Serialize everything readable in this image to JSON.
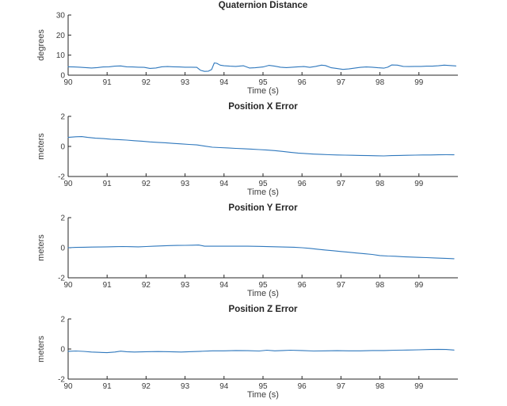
{
  "figure": {
    "background_color": "#ffffff",
    "axis_color": "#262626",
    "tick_label_color": "#3c3c3c",
    "line_color": "#2f78bd",
    "title_color": "#262626"
  },
  "chart_data": [
    {
      "type": "line",
      "title": "Quaternion Distance",
      "xlabel": "Time (s)",
      "ylabel": "degrees",
      "xlim": [
        90,
        100
      ],
      "ylim": [
        0,
        30
      ],
      "xticks": [
        90,
        91,
        92,
        93,
        94,
        95,
        96,
        97,
        98,
        99
      ],
      "yticks": [
        0,
        10,
        20,
        30
      ],
      "grid": false,
      "legend": "none",
      "series": [
        {
          "name": "quaternion-distance-degrees",
          "points": [
            [
              90.0,
              4.2
            ],
            [
              90.15,
              4.1
            ],
            [
              90.3,
              4.0
            ],
            [
              90.45,
              3.8
            ],
            [
              90.6,
              3.6
            ],
            [
              90.75,
              3.8
            ],
            [
              90.9,
              4.1
            ],
            [
              91.05,
              4.2
            ],
            [
              91.2,
              4.5
            ],
            [
              91.35,
              4.6
            ],
            [
              91.5,
              4.2
            ],
            [
              91.65,
              4.1
            ],
            [
              91.8,
              4.0
            ],
            [
              91.95,
              3.9
            ],
            [
              92.1,
              3.4
            ],
            [
              92.25,
              3.6
            ],
            [
              92.4,
              4.2
            ],
            [
              92.55,
              4.3
            ],
            [
              92.7,
              4.2
            ],
            [
              92.85,
              4.1
            ],
            [
              93.0,
              4.0
            ],
            [
              93.15,
              4.0
            ],
            [
              93.3,
              3.9
            ],
            [
              93.4,
              2.4
            ],
            [
              93.5,
              1.9
            ],
            [
              93.6,
              2.0
            ],
            [
              93.68,
              2.8
            ],
            [
              93.75,
              6.1
            ],
            [
              93.82,
              5.9
            ],
            [
              93.9,
              5.0
            ],
            [
              94.0,
              4.7
            ],
            [
              94.15,
              4.5
            ],
            [
              94.3,
              4.4
            ],
            [
              94.5,
              4.7
            ],
            [
              94.65,
              3.6
            ],
            [
              94.8,
              3.7
            ],
            [
              95.0,
              4.1
            ],
            [
              95.15,
              4.9
            ],
            [
              95.3,
              4.5
            ],
            [
              95.45,
              4.0
            ],
            [
              95.6,
              3.8
            ],
            [
              95.75,
              4.0
            ],
            [
              95.9,
              4.2
            ],
            [
              96.05,
              4.3
            ],
            [
              96.2,
              3.9
            ],
            [
              96.35,
              4.4
            ],
            [
              96.5,
              5.0
            ],
            [
              96.6,
              4.8
            ],
            [
              96.75,
              3.7
            ],
            [
              96.9,
              3.3
            ],
            [
              97.05,
              2.9
            ],
            [
              97.2,
              3.1
            ],
            [
              97.35,
              3.5
            ],
            [
              97.5,
              3.9
            ],
            [
              97.65,
              4.1
            ],
            [
              97.8,
              4.0
            ],
            [
              97.95,
              3.7
            ],
            [
              98.1,
              3.5
            ],
            [
              98.2,
              4.0
            ],
            [
              98.3,
              5.1
            ],
            [
              98.45,
              5.0
            ],
            [
              98.6,
              4.4
            ],
            [
              98.75,
              4.3
            ],
            [
              98.9,
              4.4
            ],
            [
              99.05,
              4.4
            ],
            [
              99.2,
              4.5
            ],
            [
              99.35,
              4.5
            ],
            [
              99.5,
              4.7
            ],
            [
              99.65,
              5.0
            ],
            [
              99.8,
              4.8
            ],
            [
              99.95,
              4.6
            ]
          ]
        }
      ]
    },
    {
      "type": "line",
      "title": "Position X Error",
      "xlabel": "Time (s)",
      "ylabel": "meters",
      "xlim": [
        90,
        100
      ],
      "ylim": [
        -2,
        2
      ],
      "xticks": [
        90,
        91,
        92,
        93,
        94,
        95,
        96,
        97,
        98,
        99
      ],
      "yticks": [
        -2,
        0,
        2
      ],
      "grid": false,
      "legend": "none",
      "series": [
        {
          "name": "position-x-error-meters",
          "points": [
            [
              90.0,
              0.6
            ],
            [
              90.2,
              0.64
            ],
            [
              90.35,
              0.65
            ],
            [
              90.5,
              0.6
            ],
            [
              90.7,
              0.55
            ],
            [
              90.9,
              0.52
            ],
            [
              91.1,
              0.48
            ],
            [
              91.3,
              0.45
            ],
            [
              91.5,
              0.42
            ],
            [
              91.7,
              0.38
            ],
            [
              91.9,
              0.35
            ],
            [
              92.1,
              0.3
            ],
            [
              92.3,
              0.27
            ],
            [
              92.5,
              0.24
            ],
            [
              92.7,
              0.2
            ],
            [
              92.9,
              0.17
            ],
            [
              93.1,
              0.13
            ],
            [
              93.3,
              0.1
            ],
            [
              93.5,
              0.02
            ],
            [
              93.7,
              -0.05
            ],
            [
              93.9,
              -0.08
            ],
            [
              94.1,
              -0.1
            ],
            [
              94.3,
              -0.13
            ],
            [
              94.5,
              -0.15
            ],
            [
              94.7,
              -0.18
            ],
            [
              94.9,
              -0.21
            ],
            [
              95.1,
              -0.24
            ],
            [
              95.3,
              -0.28
            ],
            [
              95.5,
              -0.33
            ],
            [
              95.7,
              -0.39
            ],
            [
              95.9,
              -0.44
            ],
            [
              96.1,
              -0.48
            ],
            [
              96.3,
              -0.51
            ],
            [
              96.5,
              -0.53
            ],
            [
              96.7,
              -0.55
            ],
            [
              96.9,
              -0.57
            ],
            [
              97.1,
              -0.58
            ],
            [
              97.3,
              -0.59
            ],
            [
              97.5,
              -0.6
            ],
            [
              97.7,
              -0.61
            ],
            [
              97.9,
              -0.62
            ],
            [
              98.1,
              -0.63
            ],
            [
              98.3,
              -0.61
            ],
            [
              98.5,
              -0.6
            ],
            [
              98.7,
              -0.59
            ],
            [
              98.9,
              -0.58
            ],
            [
              99.1,
              -0.57
            ],
            [
              99.3,
              -0.57
            ],
            [
              99.5,
              -0.56
            ],
            [
              99.7,
              -0.55
            ],
            [
              99.9,
              -0.56
            ]
          ]
        }
      ]
    },
    {
      "type": "line",
      "title": "Position Y Error",
      "xlabel": "Time (s)",
      "ylabel": "meters",
      "xlim": [
        90,
        100
      ],
      "ylim": [
        -2,
        2
      ],
      "xticks": [
        90,
        91,
        92,
        93,
        94,
        95,
        96,
        97,
        98,
        99
      ],
      "yticks": [
        -2,
        0,
        2
      ],
      "grid": false,
      "legend": "none",
      "series": [
        {
          "name": "position-y-error-meters",
          "points": [
            [
              90.0,
              0.0
            ],
            [
              90.2,
              0.02
            ],
            [
              90.4,
              0.03
            ],
            [
              90.6,
              0.04
            ],
            [
              90.8,
              0.05
            ],
            [
              91.0,
              0.06
            ],
            [
              91.2,
              0.07
            ],
            [
              91.4,
              0.08
            ],
            [
              91.6,
              0.07
            ],
            [
              91.8,
              0.06
            ],
            [
              92.0,
              0.08
            ],
            [
              92.2,
              0.1
            ],
            [
              92.4,
              0.12
            ],
            [
              92.6,
              0.14
            ],
            [
              92.8,
              0.15
            ],
            [
              93.0,
              0.16
            ],
            [
              93.2,
              0.17
            ],
            [
              93.35,
              0.18
            ],
            [
              93.5,
              0.1
            ],
            [
              93.7,
              0.1
            ],
            [
              94.0,
              0.1
            ],
            [
              94.3,
              0.1
            ],
            [
              94.6,
              0.1
            ],
            [
              94.9,
              0.09
            ],
            [
              95.2,
              0.07
            ],
            [
              95.5,
              0.05
            ],
            [
              95.8,
              0.03
            ],
            [
              96.0,
              0.0
            ],
            [
              96.2,
              -0.04
            ],
            [
              96.4,
              -0.1
            ],
            [
              96.6,
              -0.15
            ],
            [
              96.8,
              -0.2
            ],
            [
              97.0,
              -0.25
            ],
            [
              97.2,
              -0.3
            ],
            [
              97.4,
              -0.35
            ],
            [
              97.6,
              -0.4
            ],
            [
              97.8,
              -0.45
            ],
            [
              98.0,
              -0.52
            ],
            [
              98.2,
              -0.55
            ],
            [
              98.4,
              -0.57
            ],
            [
              98.6,
              -0.6
            ],
            [
              98.8,
              -0.62
            ],
            [
              99.0,
              -0.64
            ],
            [
              99.2,
              -0.66
            ],
            [
              99.4,
              -0.68
            ],
            [
              99.6,
              -0.7
            ],
            [
              99.8,
              -0.72
            ],
            [
              99.9,
              -0.73
            ]
          ]
        }
      ]
    },
    {
      "type": "line",
      "title": "Position Z Error",
      "xlabel": "Time (s)",
      "ylabel": "meters",
      "xlim": [
        90,
        100
      ],
      "ylim": [
        -2,
        2
      ],
      "xticks": [
        90,
        91,
        92,
        93,
        94,
        95,
        96,
        97,
        98,
        99
      ],
      "yticks": [
        -2,
        0,
        2
      ],
      "grid": false,
      "legend": "none",
      "series": [
        {
          "name": "position-z-error-meters",
          "points": [
            [
              90.0,
              -0.15
            ],
            [
              90.2,
              -0.13
            ],
            [
              90.4,
              -0.16
            ],
            [
              90.6,
              -0.2
            ],
            [
              90.8,
              -0.22
            ],
            [
              91.0,
              -0.24
            ],
            [
              91.2,
              -0.2
            ],
            [
              91.35,
              -0.14
            ],
            [
              91.5,
              -0.18
            ],
            [
              91.7,
              -0.2
            ],
            [
              92.0,
              -0.18
            ],
            [
              92.3,
              -0.17
            ],
            [
              92.6,
              -0.18
            ],
            [
              92.9,
              -0.2
            ],
            [
              93.1,
              -0.18
            ],
            [
              93.4,
              -0.15
            ],
            [
              93.7,
              -0.12
            ],
            [
              94.0,
              -0.12
            ],
            [
              94.3,
              -0.1
            ],
            [
              94.6,
              -0.11
            ],
            [
              94.9,
              -0.13
            ],
            [
              95.1,
              -0.08
            ],
            [
              95.3,
              -0.12
            ],
            [
              95.5,
              -0.1
            ],
            [
              95.7,
              -0.08
            ],
            [
              96.0,
              -0.1
            ],
            [
              96.3,
              -0.13
            ],
            [
              96.6,
              -0.12
            ],
            [
              96.9,
              -0.11
            ],
            [
              97.2,
              -0.12
            ],
            [
              97.5,
              -0.12
            ],
            [
              97.8,
              -0.1
            ],
            [
              98.1,
              -0.1
            ],
            [
              98.4,
              -0.08
            ],
            [
              98.7,
              -0.07
            ],
            [
              99.0,
              -0.05
            ],
            [
              99.3,
              -0.03
            ],
            [
              99.5,
              -0.02
            ],
            [
              99.7,
              -0.03
            ],
            [
              99.9,
              -0.07
            ]
          ]
        }
      ]
    }
  ]
}
